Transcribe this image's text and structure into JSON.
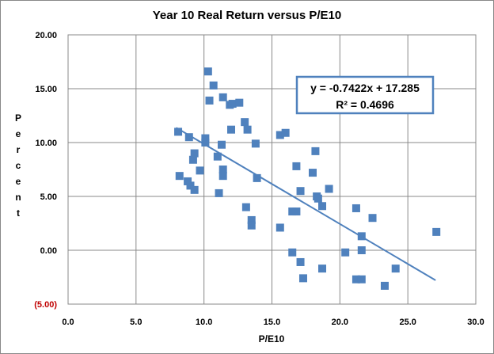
{
  "chart_data": {
    "type": "scatter",
    "title": "Year 10 Real Return versus P/E10",
    "xlabel": "P/E10",
    "ylabel": "Percent",
    "xlim": [
      0,
      30
    ],
    "ylim": [
      -5,
      20
    ],
    "x_ticks": [
      "0.0",
      "5.0",
      "10.0",
      "15.0",
      "20.0",
      "25.0",
      "30.0"
    ],
    "y_ticks": [
      "(5.00)",
      "0.00",
      "5.00",
      "10.00",
      "15.00",
      "20.00"
    ],
    "grid": true,
    "marker_color": "#4f81bd",
    "trendline": {
      "type": "linear",
      "slope": -0.7422,
      "intercept": 17.285,
      "equation": "y = -0.7422x + 17.285",
      "r_squared_label": "R² = 0.4696",
      "x_range": [
        8.0,
        27.0
      ],
      "color": "#4f81bd"
    },
    "points": [
      {
        "x": 8.1,
        "y": 11.0
      },
      {
        "x": 8.2,
        "y": 6.9
      },
      {
        "x": 8.8,
        "y": 6.4
      },
      {
        "x": 8.9,
        "y": 10.5
      },
      {
        "x": 9.0,
        "y": 6.0
      },
      {
        "x": 9.2,
        "y": 8.4
      },
      {
        "x": 9.3,
        "y": 9.0
      },
      {
        "x": 9.3,
        "y": 5.6
      },
      {
        "x": 9.7,
        "y": 7.4
      },
      {
        "x": 10.1,
        "y": 10.4
      },
      {
        "x": 10.1,
        "y": 10.0
      },
      {
        "x": 10.3,
        "y": 16.6
      },
      {
        "x": 10.4,
        "y": 13.9
      },
      {
        "x": 10.7,
        "y": 15.3
      },
      {
        "x": 11.0,
        "y": 8.7
      },
      {
        "x": 11.1,
        "y": 5.3
      },
      {
        "x": 11.3,
        "y": 9.8
      },
      {
        "x": 11.4,
        "y": 14.2
      },
      {
        "x": 11.4,
        "y": 7.5
      },
      {
        "x": 11.4,
        "y": 6.9
      },
      {
        "x": 11.9,
        "y": 13.5
      },
      {
        "x": 12.0,
        "y": 11.2
      },
      {
        "x": 12.1,
        "y": 13.6
      },
      {
        "x": 12.6,
        "y": 13.7
      },
      {
        "x": 13.0,
        "y": 11.9
      },
      {
        "x": 13.1,
        "y": 4.0
      },
      {
        "x": 13.2,
        "y": 11.2
      },
      {
        "x": 13.5,
        "y": 2.8
      },
      {
        "x": 13.5,
        "y": 2.3
      },
      {
        "x": 13.8,
        "y": 9.9
      },
      {
        "x": 13.9,
        "y": 6.7
      },
      {
        "x": 15.6,
        "y": 10.7
      },
      {
        "x": 15.6,
        "y": 2.1
      },
      {
        "x": 16.0,
        "y": 10.9
      },
      {
        "x": 16.5,
        "y": 3.6
      },
      {
        "x": 16.5,
        "y": -0.2
      },
      {
        "x": 16.8,
        "y": 7.8
      },
      {
        "x": 16.8,
        "y": 3.6
      },
      {
        "x": 17.1,
        "y": 5.5
      },
      {
        "x": 17.1,
        "y": -1.1
      },
      {
        "x": 17.3,
        "y": -2.6
      },
      {
        "x": 18.0,
        "y": 7.2
      },
      {
        "x": 18.2,
        "y": 9.2
      },
      {
        "x": 18.3,
        "y": 5.0
      },
      {
        "x": 18.4,
        "y": 4.8
      },
      {
        "x": 18.7,
        "y": 4.1
      },
      {
        "x": 18.7,
        "y": -1.7
      },
      {
        "x": 19.2,
        "y": 5.7
      },
      {
        "x": 20.4,
        "y": -0.2
      },
      {
        "x": 21.2,
        "y": 3.9
      },
      {
        "x": 21.2,
        "y": -2.7
      },
      {
        "x": 21.6,
        "y": 1.3
      },
      {
        "x": 21.6,
        "y": 0.0
      },
      {
        "x": 21.6,
        "y": -2.7
      },
      {
        "x": 22.4,
        "y": 3.0
      },
      {
        "x": 23.3,
        "y": -3.3
      },
      {
        "x": 24.1,
        "y": -1.7
      },
      {
        "x": 27.1,
        "y": 1.7
      }
    ]
  }
}
